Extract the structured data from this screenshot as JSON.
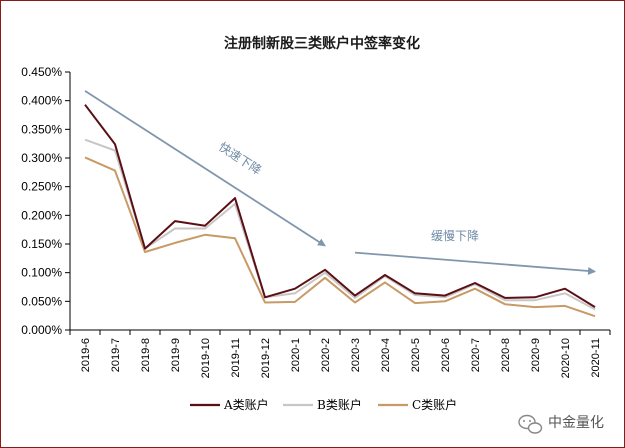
{
  "chart_data": {
    "type": "line",
    "title": "注册制新股三类账户中签率变化",
    "categories": [
      "2019-6",
      "2019-7",
      "2019-8",
      "2019-9",
      "2019-10",
      "2019-11",
      "2019-12",
      "2020-1",
      "2020-2",
      "2020-3",
      "2020-4",
      "2020-5",
      "2020-6",
      "2020-7",
      "2020-8",
      "2020-9",
      "2020-10",
      "2020-11"
    ],
    "ylim": [
      0,
      0.45
    ],
    "yticks": [
      "0.000%",
      "0.050%",
      "0.100%",
      "0.150%",
      "0.200%",
      "0.250%",
      "0.300%",
      "0.350%",
      "0.400%",
      "0.450%"
    ],
    "ytick_values": [
      0,
      0.05,
      0.1,
      0.15,
      0.2,
      0.25,
      0.3,
      0.35,
      0.4,
      0.45
    ],
    "xlabel": "",
    "ylabel": "",
    "grid": false,
    "legend_position": "bottom",
    "series": [
      {
        "name": "A类账户",
        "color": "#5a0f16",
        "values": [
          0.393,
          0.324,
          0.142,
          0.19,
          0.182,
          0.23,
          0.057,
          0.072,
          0.105,
          0.06,
          0.096,
          0.064,
          0.06,
          0.082,
          0.056,
          0.057,
          0.072,
          0.04
        ]
      },
      {
        "name": "B类账户",
        "color": "#c9c6c3",
        "values": [
          0.332,
          0.313,
          0.142,
          0.177,
          0.177,
          0.22,
          0.057,
          0.064,
          0.1,
          0.056,
          0.094,
          0.061,
          0.057,
          0.08,
          0.052,
          0.052,
          0.064,
          0.036
        ]
      },
      {
        "name": "C类账户",
        "color": "#c89a66",
        "values": [
          0.301,
          0.278,
          0.136,
          0.152,
          0.166,
          0.16,
          0.048,
          0.049,
          0.091,
          0.048,
          0.083,
          0.047,
          0.05,
          0.072,
          0.045,
          0.04,
          0.042,
          0.024
        ]
      }
    ],
    "annotations": [
      {
        "text": "快速下降",
        "arrow_color": "#8096ad",
        "from": {
          "x": "2019-6",
          "y": 0.417
        },
        "to": {
          "x": "2020-2",
          "y": 0.147
        }
      },
      {
        "text": "缓慢下降",
        "arrow_color": "#8096ad",
        "from": {
          "x": "2020-3",
          "y": 0.135
        },
        "to": {
          "x": "2020-11",
          "y": 0.102
        }
      }
    ]
  },
  "watermark": {
    "text": "中金量化",
    "icon": "wechat-icon"
  },
  "colors": {
    "frame_border": "#8b1a1a",
    "axis": "#000000",
    "arrow": "#8096ad",
    "annotation_text": "#6e8aa6"
  }
}
